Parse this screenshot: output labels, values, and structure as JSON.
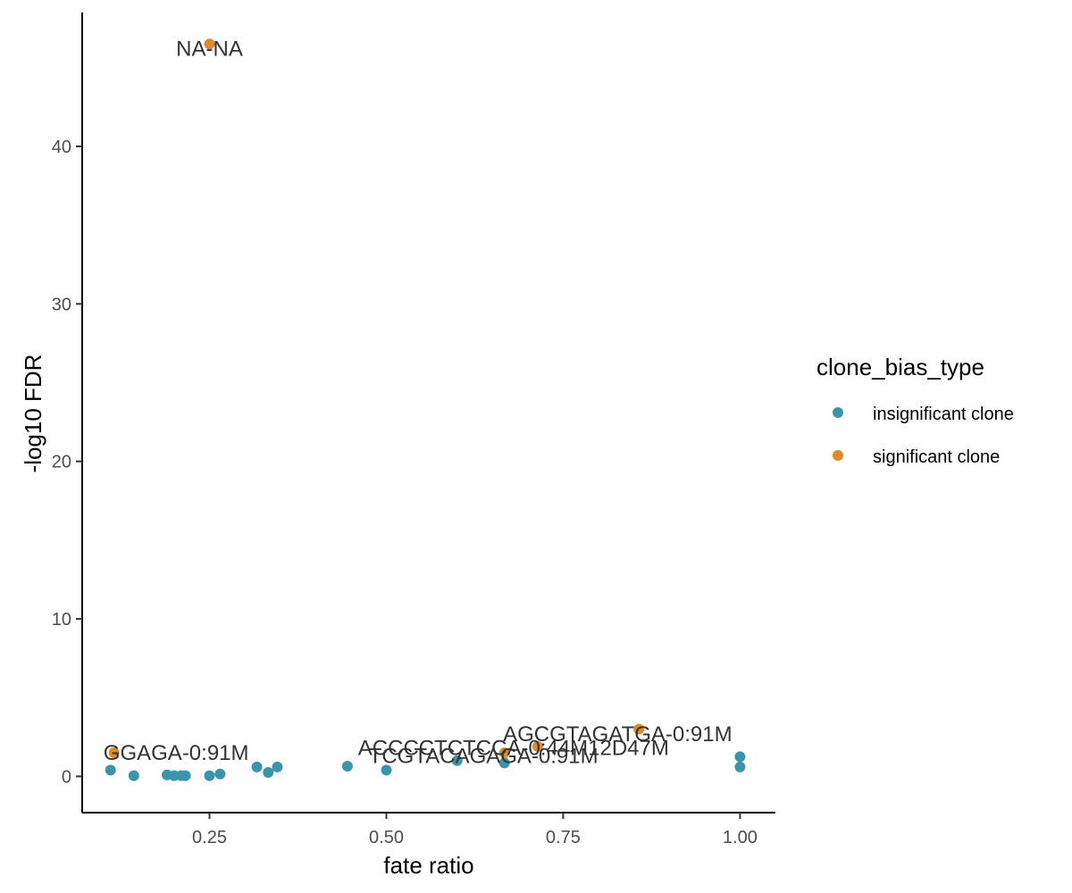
{
  "chart_data": {
    "type": "scatter",
    "xlabel": "fate ratio",
    "ylabel": "-log10 FDR",
    "xlim": [
      0.07,
      1.05
    ],
    "ylim": [
      -2.3,
      48.5
    ],
    "xticks": [
      0.25,
      0.5,
      0.75,
      1.0
    ],
    "xtick_labels": [
      "0.25",
      "0.50",
      "0.75",
      "1.00"
    ],
    "yticks": [
      0,
      10,
      20,
      30,
      40
    ],
    "ytick_labels": [
      "0",
      "10",
      "20",
      "30",
      "40"
    ],
    "grid": false,
    "legend": {
      "title": "clone_bias_type",
      "placement": "right",
      "entries": [
        {
          "label": "insignificant clone",
          "color": "#3b94ab"
        },
        {
          "label": "significant clone",
          "color": "#df8a2b"
        }
      ]
    },
    "series": [
      {
        "name": "insignificant clone",
        "color": "#3b94ab",
        "points": [
          {
            "x": 0.11,
            "y": 0.4
          },
          {
            "x": 0.143,
            "y": 0.05
          },
          {
            "x": 0.19,
            "y": 0.1
          },
          {
            "x": 0.2,
            "y": 0.05
          },
          {
            "x": 0.21,
            "y": 0.05
          },
          {
            "x": 0.216,
            "y": 0.05
          },
          {
            "x": 0.25,
            "y": 0.05
          },
          {
            "x": 0.265,
            "y": 0.15
          },
          {
            "x": 0.317,
            "y": 0.6
          },
          {
            "x": 0.333,
            "y": 0.25
          },
          {
            "x": 0.346,
            "y": 0.6
          },
          {
            "x": 0.445,
            "y": 0.65
          },
          {
            "x": 0.5,
            "y": 0.4
          },
          {
            "x": 0.6,
            "y": 1.0
          },
          {
            "x": 0.667,
            "y": 0.85
          },
          {
            "x": 1.0,
            "y": 1.25
          },
          {
            "x": 1.0,
            "y": 0.6
          }
        ]
      },
      {
        "name": "significant clone",
        "color": "#df8a2b",
        "points": [
          {
            "x": 0.25,
            "y": 46.5
          },
          {
            "x": 0.115,
            "y": 1.5
          },
          {
            "x": 0.667,
            "y": 1.5
          },
          {
            "x": 0.714,
            "y": 1.9
          },
          {
            "x": 0.857,
            "y": 3.0
          }
        ]
      }
    ],
    "annotations": [
      {
        "text": "NA-NA",
        "x": 0.25,
        "y": 46.2,
        "anchor": "middle"
      },
      {
        "text": "GGAGA-0:91M",
        "x": 0.1,
        "y": 1.5,
        "anchor": "start"
      },
      {
        "text": "ACCCCTCTCCA-0:44M12D47M",
        "x": 0.46,
        "y": 1.8,
        "anchor": "start"
      },
      {
        "text": "TCGTACAGAGA-0:91M",
        "x": 0.475,
        "y": 1.3,
        "anchor": "start"
      },
      {
        "text": "AGCGTAGATGA-0:91M",
        "x": 0.665,
        "y": 2.7,
        "anchor": "start"
      }
    ]
  }
}
